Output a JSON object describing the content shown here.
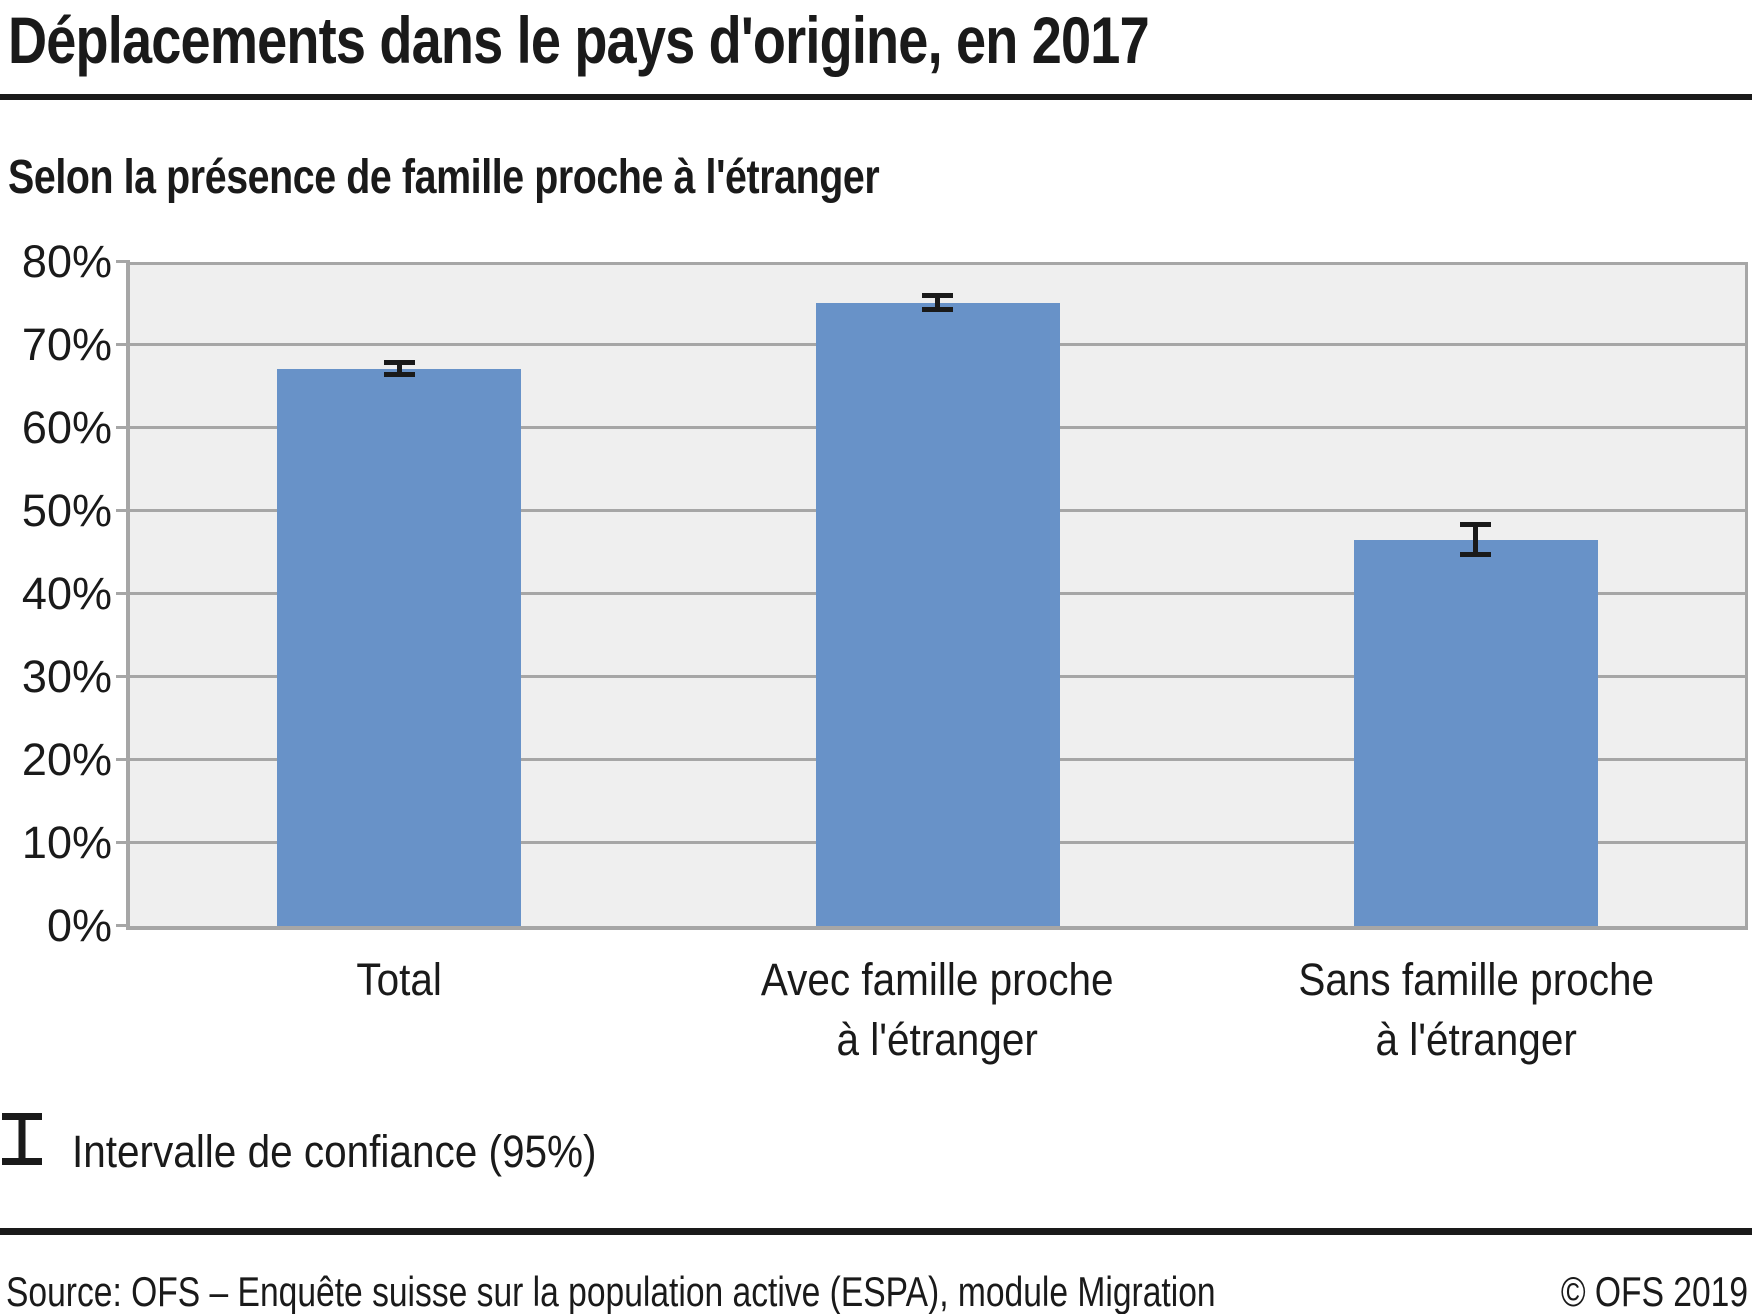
{
  "chart_data": {
    "type": "bar",
    "title": "Déplacements dans le pays d'origine, en 2017",
    "subtitle": "Selon la présence de famille proche à l'étranger",
    "categories": [
      "Total",
      "Avec famille proche à l'étranger",
      "Sans famille proche à l'étranger"
    ],
    "category_label_lines": [
      [
        "Total"
      ],
      [
        "Avec famille proche",
        "à l'étranger"
      ],
      [
        "Sans famille proche",
        "à l'étranger"
      ]
    ],
    "values": [
      67.1,
      75.1,
      46.5
    ],
    "confidence_interval_95": [
      [
        66.1,
        68.2
      ],
      [
        74.0,
        76.3
      ],
      [
        44.4,
        48.7
      ]
    ],
    "unit": "%",
    "ylim": [
      0,
      80
    ],
    "ytick_step": 10,
    "ytick_labels": [
      "0%",
      "10%",
      "20%",
      "30%",
      "40%",
      "50%",
      "60%",
      "70%",
      "80%"
    ],
    "grid": true,
    "legend_label": "Intervalle de confiance (95%)",
    "colors": {
      "bar": "#6892c8",
      "plot_background": "#efefef",
      "grid_line": "#a6a6a6",
      "error_bar": "#1a1a1a",
      "text": "#1a1a1a"
    }
  },
  "footer": {
    "source": "Source: OFS – Enquête suisse sur la population active (ESPA), module Migration",
    "copyright": "© OFS 2019"
  }
}
